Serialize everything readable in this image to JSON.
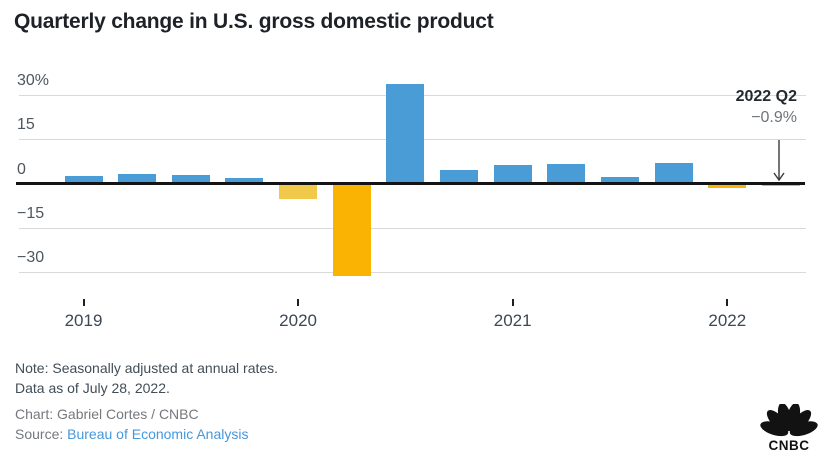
{
  "title": "Quarterly change in U.S. gross domestic product",
  "chart_data": {
    "type": "bar",
    "title": "Quarterly change in U.S. gross domestic product",
    "x": [
      "2019 Q1",
      "2019 Q2",
      "2019 Q3",
      "2019 Q4",
      "2020 Q1",
      "2020 Q2",
      "2020 Q3",
      "2020 Q4",
      "2021 Q1",
      "2021 Q2",
      "2021 Q3",
      "2021 Q4",
      "2022 Q1",
      "2022 Q2"
    ],
    "values": [
      2.4,
      3.2,
      2.8,
      1.9,
      -5.1,
      -31.2,
      33.8,
      4.5,
      6.3,
      6.7,
      2.3,
      6.9,
      -1.6,
      -0.9
    ],
    "bar_colors": [
      "blue",
      "blue",
      "blue",
      "blue",
      "yellow",
      "orange",
      "blue",
      "blue",
      "blue",
      "blue",
      "blue",
      "blue",
      "orange",
      "orange"
    ],
    "palette": {
      "blue": "#499CD5",
      "yellow": "#F0C94B",
      "orange": "#FBB303"
    },
    "xlabel": "",
    "ylabel": "",
    "ylim": [
      -33,
      35
    ],
    "grid": "horizontal",
    "legend": "none",
    "yticks": [
      {
        "v": 30,
        "label": "30%"
      },
      {
        "v": 15,
        "label": "15"
      },
      {
        "v": 0,
        "label": "0"
      },
      {
        "v": -15,
        "label": "−15"
      },
      {
        "v": -30,
        "label": "−30"
      }
    ],
    "xticks": [
      {
        "i": 0,
        "label": "2019"
      },
      {
        "i": 4,
        "label": "2020"
      },
      {
        "i": 8,
        "label": "2021"
      },
      {
        "i": 12,
        "label": "2022"
      }
    ],
    "annotation": {
      "label": "2022 Q2",
      "value_label": "−0.9%",
      "points_to": "2022 Q2"
    }
  },
  "annotation": {
    "line1": "2022 Q2",
    "line2": "−0.9%"
  },
  "footer": {
    "note_line1": "Note: Seasonally adjusted at annual rates.",
    "note_line2": "Data as of July 28, 2022.",
    "credit": "Chart: Gabriel Cortes / CNBC",
    "source_prefix": "Source: ",
    "source_link": "Bureau of Economic Analysis"
  },
  "logo": {
    "wordmark": "CNBC"
  }
}
